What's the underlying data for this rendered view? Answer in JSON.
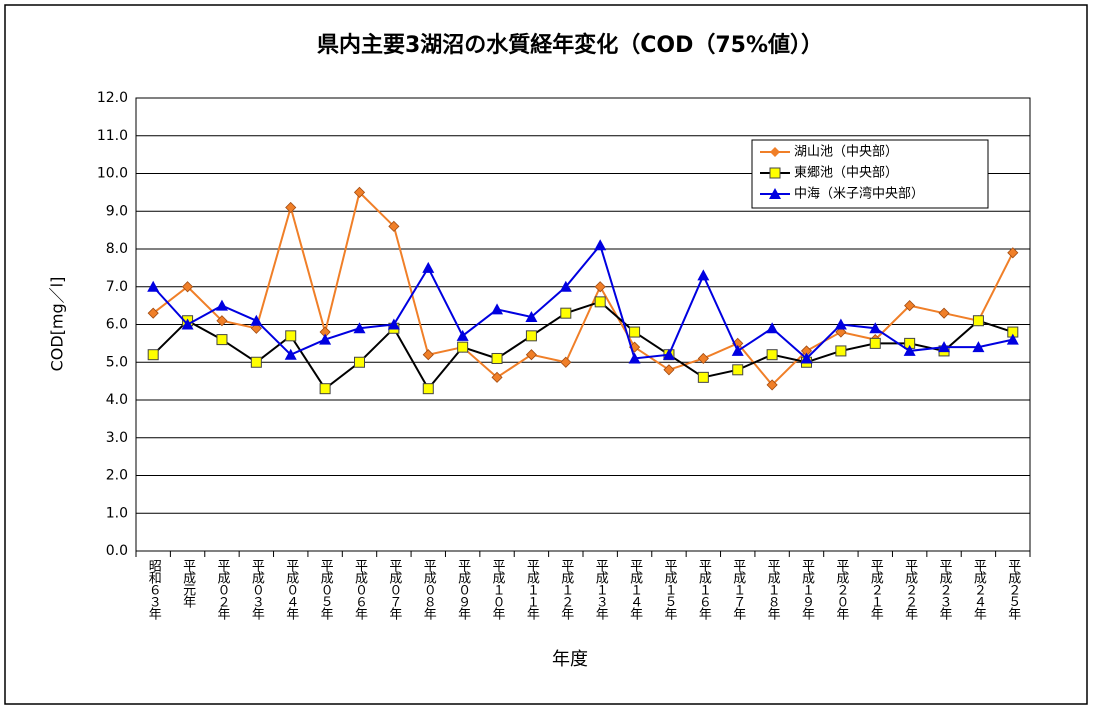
{
  "chart_data": {
    "type": "line",
    "title": "県内主要3湖沼の水質経年変化（COD（75%値））",
    "xlabel": "年度",
    "ylabel": "COD[mg／l]",
    "categories": [
      "昭和６３年",
      "平成元年",
      "平成０２年",
      "平成０３年",
      "平成０４年",
      "平成０５年",
      "平成０６年",
      "平成０７年",
      "平成０８年",
      "平成０９年",
      "平成１０年",
      "平成１１年",
      "平成１２年",
      "平成１３年",
      "平成１４年",
      "平成１５年",
      "平成１６年",
      "平成１７年",
      "平成１８年",
      "平成１９年",
      "平成２０年",
      "平成２１年",
      "平成２２年",
      "平成２３年",
      "平成２４年",
      "平成２５年"
    ],
    "series": [
      {
        "name": "湖山池（中央部）",
        "color": "#f07f28",
        "marker": "diamond",
        "values": [
          6.3,
          7.0,
          6.1,
          5.9,
          9.1,
          5.8,
          9.5,
          8.6,
          5.2,
          5.4,
          4.6,
          5.2,
          5.0,
          7.0,
          5.4,
          4.8,
          5.1,
          5.5,
          4.4,
          5.3,
          5.8,
          5.6,
          6.5,
          6.3,
          6.1,
          7.9
        ]
      },
      {
        "name": "東郷池（中央部）",
        "color": "#000000",
        "marker": "square",
        "values": [
          5.2,
          6.1,
          5.6,
          5.0,
          5.7,
          4.3,
          5.0,
          5.9,
          4.3,
          5.4,
          5.1,
          5.7,
          6.3,
          6.6,
          5.8,
          5.2,
          4.6,
          4.8,
          5.2,
          5.0,
          5.3,
          5.5,
          5.5,
          5.3,
          6.1,
          5.8
        ]
      },
      {
        "name": "中海（米子湾中央部）",
        "color": "#0000e0",
        "marker": "triangle",
        "values": [
          7.0,
          6.0,
          6.5,
          6.1,
          5.2,
          5.6,
          5.9,
          6.0,
          7.5,
          5.7,
          6.4,
          6.2,
          7.0,
          8.1,
          5.1,
          5.2,
          7.3,
          5.3,
          5.9,
          5.1,
          6.0,
          5.9,
          5.3,
          5.4,
          5.4,
          5.6
        ]
      }
    ],
    "ylim": [
      0,
      12
    ],
    "yticks": [
      {
        "value": 0,
        "label": "0.0"
      },
      {
        "value": 1,
        "label": "1.0"
      },
      {
        "value": 2,
        "label": "2.0"
      },
      {
        "value": 3,
        "label": "3.0"
      },
      {
        "value": 4,
        "label": "4.0"
      },
      {
        "value": 5,
        "label": "5.0"
      },
      {
        "value": 6,
        "label": "6.0"
      },
      {
        "value": 7,
        "label": "7.0"
      },
      {
        "value": 8,
        "label": "8.0"
      },
      {
        "value": 9,
        "label": "9.0"
      },
      {
        "value": 10,
        "label": "10.0"
      },
      {
        "value": 11,
        "label": "11.0"
      },
      {
        "value": 12,
        "label": "12.0"
      }
    ],
    "grid": true
  }
}
